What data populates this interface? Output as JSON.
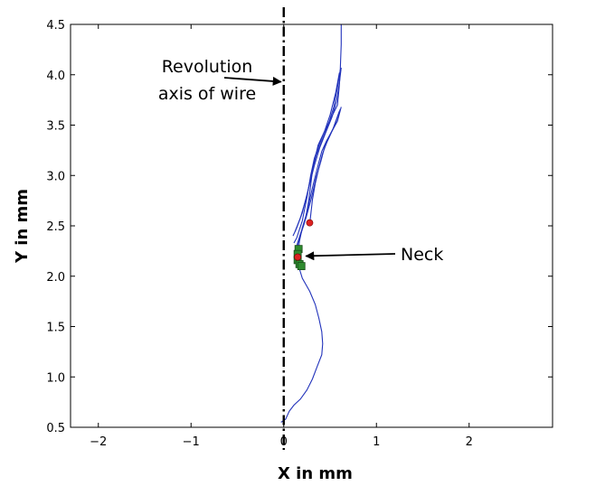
{
  "chart_data": {
    "type": "line",
    "title": "",
    "xlabel": "X in mm",
    "ylabel": "Y in mm",
    "xlim": [
      -2.3,
      2.9
    ],
    "ylim": [
      0.5,
      4.5
    ],
    "xticks": [
      -2,
      -1,
      0,
      1,
      2
    ],
    "yticks": [
      0.5,
      1.0,
      1.5,
      2.0,
      2.5,
      3.0,
      3.5,
      4.0,
      4.5
    ],
    "xtick_labels": [
      "−2",
      "−1",
      "0",
      "1",
      "2"
    ],
    "ytick_labels": [
      "0.5",
      "1.0",
      "1.5",
      "2.0",
      "2.5",
      "3.0",
      "3.5",
      "4.0",
      "4.5"
    ],
    "grid": false,
    "line_color": "#2233bb",
    "revolution_axis": {
      "x": 0,
      "style": "dash-dot",
      "color": "#000000"
    },
    "annotations": [
      {
        "text_lines": [
          "Revolution",
          "axis of wire"
        ],
        "arrow_to": [
          0.0,
          3.93
        ]
      },
      {
        "text_lines": [
          "Neck"
        ],
        "arrow_to": [
          0.22,
          2.2
        ]
      }
    ],
    "series": [
      {
        "x": [
          0.62,
          0.62,
          0.61,
          0.6,
          0.58,
          0.5,
          0.42,
          0.37,
          0.34,
          0.31,
          0.29,
          0.27,
          0.24,
          0.2,
          0.17,
          0.15,
          0.16,
          0.2,
          0.28,
          0.34,
          0.38,
          0.41,
          0.42,
          0.41,
          0.36,
          0.31,
          0.25,
          0.18,
          0.11,
          0.06,
          0.02,
          -0.03
        ],
        "y": [
          4.5,
          4.3,
          4.06,
          3.9,
          3.7,
          3.55,
          3.4,
          3.3,
          3.18,
          3.05,
          2.9,
          2.75,
          2.6,
          2.48,
          2.35,
          2.2,
          2.1,
          1.98,
          1.85,
          1.72,
          1.58,
          1.45,
          1.33,
          1.22,
          1.1,
          0.98,
          0.87,
          0.78,
          0.72,
          0.66,
          0.58,
          0.55
        ]
      },
      {
        "x": [
          0.62,
          0.6,
          0.57,
          0.52,
          0.45,
          0.39,
          0.33,
          0.27,
          0.2,
          0.14,
          0.12
        ],
        "y": [
          4.07,
          3.92,
          3.74,
          3.58,
          3.42,
          3.28,
          3.1,
          2.88,
          2.63,
          2.48,
          2.44
        ]
      },
      {
        "x": [
          0.61,
          0.58,
          0.54,
          0.48,
          0.41,
          0.35,
          0.3,
          0.25,
          0.18,
          0.12,
          0.1
        ],
        "y": [
          4.05,
          3.88,
          3.68,
          3.5,
          3.34,
          3.2,
          3.02,
          2.8,
          2.58,
          2.44,
          2.4
        ]
      },
      {
        "x": [
          0.6,
          0.56,
          0.5,
          0.44,
          0.38,
          0.33,
          0.29,
          0.25,
          0.2,
          0.14,
          0.11
        ],
        "y": [
          4.02,
          3.82,
          3.6,
          3.44,
          3.3,
          3.17,
          3.0,
          2.78,
          2.55,
          2.38,
          2.33
        ]
      },
      {
        "x": [
          0.62,
          0.58,
          0.52,
          0.47,
          0.42,
          0.38,
          0.34,
          0.31,
          0.29,
          0.28
        ],
        "y": [
          3.68,
          3.54,
          3.44,
          3.34,
          3.22,
          3.08,
          2.92,
          2.76,
          2.6,
          2.52
        ]
      },
      {
        "x": [
          0.61,
          0.55,
          0.49,
          0.44,
          0.4,
          0.35,
          0.3,
          0.24,
          0.18,
          0.14,
          0.12
        ],
        "y": [
          3.66,
          3.5,
          3.38,
          3.28,
          3.14,
          2.98,
          2.78,
          2.58,
          2.42,
          2.3,
          2.26
        ]
      },
      {
        "x": [
          0.6,
          0.53,
          0.46,
          0.41,
          0.37,
          0.32,
          0.27,
          0.22,
          0.17,
          0.14
        ],
        "y": [
          3.64,
          3.46,
          3.34,
          3.24,
          3.1,
          2.92,
          2.72,
          2.52,
          2.38,
          2.28
        ]
      }
    ],
    "markers": [
      {
        "shape": "square",
        "color": "#2e8b2e",
        "points": [
          [
            0.16,
            2.27
          ],
          [
            0.15,
            2.22
          ],
          [
            0.15,
            2.16
          ],
          [
            0.17,
            2.12
          ],
          [
            0.19,
            2.1
          ]
        ]
      },
      {
        "shape": "circle",
        "color": "#dd2222",
        "points": [
          [
            0.15,
            2.19
          ],
          [
            0.28,
            2.53
          ]
        ]
      }
    ]
  }
}
